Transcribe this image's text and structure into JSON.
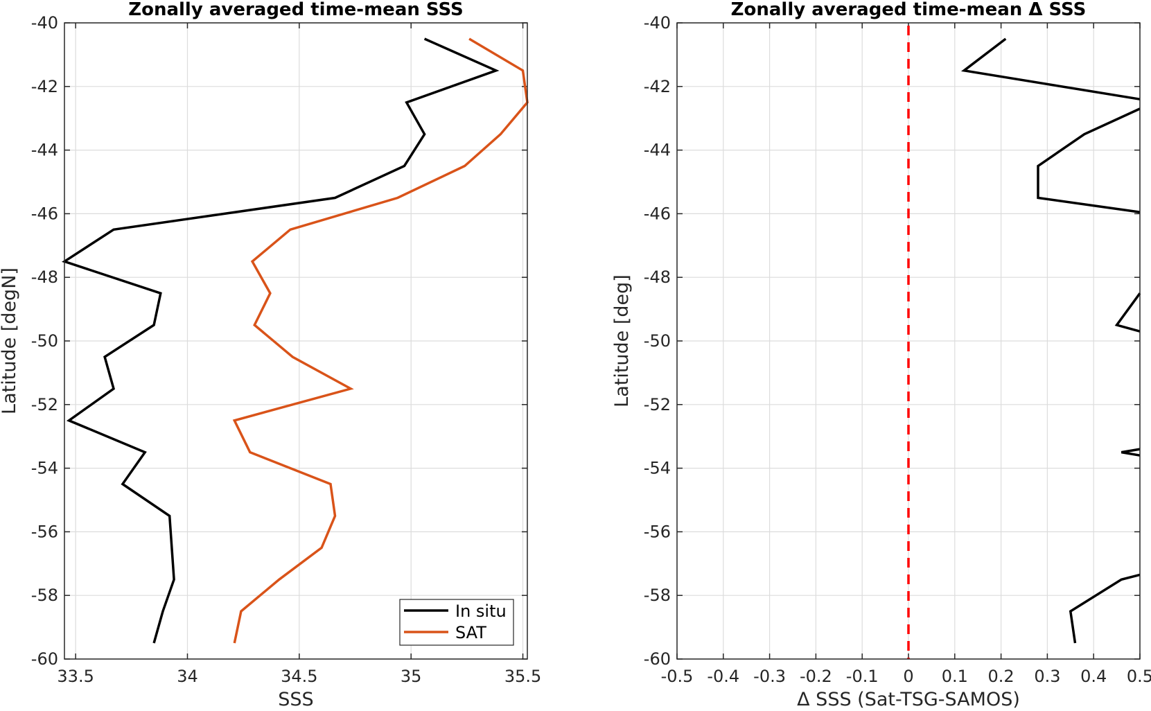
{
  "chart_data": [
    {
      "type": "line",
      "title": "Zonally averaged time-mean SSS",
      "xlabel": "SSS",
      "ylabel": "Latitude [degN]",
      "xlim": [
        33.45,
        35.52
      ],
      "ylim": [
        -60,
        -40
      ],
      "xticks": [
        33.5,
        34,
        34.5,
        35,
        35.5
      ],
      "xtick_labels": [
        "33.5",
        "34",
        "34.5",
        "35",
        "35.5"
      ],
      "yticks": [
        -60,
        -58,
        -56,
        -54,
        -52,
        -50,
        -48,
        -46,
        -44,
        -42,
        -40
      ],
      "ytick_labels": [
        "-60",
        "-58",
        "-56",
        "-54",
        "-52",
        "-50",
        "-48",
        "-46",
        "-44",
        "-42",
        "-40"
      ],
      "grid": true,
      "legend": "bottom-right",
      "series": [
        {
          "name": "In situ",
          "color": "#000000",
          "points": [
            [
              35.06,
              -40.5
            ],
            [
              35.38,
              -41.5
            ],
            [
              34.98,
              -42.5
            ],
            [
              35.06,
              -43.5
            ],
            [
              34.97,
              -44.5
            ],
            [
              34.66,
              -45.5
            ],
            [
              33.67,
              -46.5
            ],
            [
              33.45,
              -47.5
            ],
            [
              33.88,
              -48.5
            ],
            [
              33.85,
              -49.5
            ],
            [
              33.63,
              -50.5
            ],
            [
              33.67,
              -51.5
            ],
            [
              33.47,
              -52.5
            ],
            [
              33.81,
              -53.5
            ],
            [
              33.71,
              -54.5
            ],
            [
              33.92,
              -55.5
            ],
            [
              33.93,
              -56.5
            ],
            [
              33.94,
              -57.5
            ],
            [
              33.89,
              -58.5
            ],
            [
              33.85,
              -59.5
            ]
          ]
        },
        {
          "name": "SAT",
          "color": "#d95319",
          "points": [
            [
              35.26,
              -40.5
            ],
            [
              35.5,
              -41.5
            ],
            [
              35.52,
              -42.5
            ],
            [
              35.4,
              -43.5
            ],
            [
              35.24,
              -44.5
            ],
            [
              34.94,
              -45.5
            ],
            [
              34.46,
              -46.5
            ],
            [
              34.29,
              -47.5
            ],
            [
              34.37,
              -48.5
            ],
            [
              34.3,
              -49.5
            ],
            [
              34.47,
              -50.5
            ],
            [
              34.73,
              -51.5
            ],
            [
              34.21,
              -52.5
            ],
            [
              34.28,
              -53.5
            ],
            [
              34.64,
              -54.5
            ],
            [
              34.66,
              -55.5
            ],
            [
              34.6,
              -56.5
            ],
            [
              34.41,
              -57.5
            ],
            [
              34.24,
              -58.5
            ],
            [
              34.21,
              -59.5
            ]
          ]
        }
      ]
    },
    {
      "type": "line",
      "title": "Zonally averaged time-mean Δ SSS",
      "xlabel": "Δ SSS (Sat-TSG-SAMOS)",
      "ylabel": "Latitude [deg]",
      "xlim": [
        -0.5,
        0.5
      ],
      "ylim": [
        -60,
        -40
      ],
      "xticks": [
        -0.5,
        -0.4,
        -0.3,
        -0.2,
        -0.1,
        0,
        0.1,
        0.2,
        0.3,
        0.4,
        0.5
      ],
      "xtick_labels": [
        "-0.5",
        "-0.4",
        "-0.3",
        "-0.2",
        "-0.1",
        "0",
        "0.1",
        "0.2",
        "0.3",
        "0.4",
        "0.5"
      ],
      "yticks": [
        -60,
        -58,
        -56,
        -54,
        -52,
        -50,
        -48,
        -46,
        -44,
        -42,
        -40
      ],
      "ytick_labels": [
        "-60",
        "-58",
        "-56",
        "-54",
        "-52",
        "-50",
        "-48",
        "-46",
        "-44",
        "-42",
        "-40"
      ],
      "grid": true,
      "reference_line": {
        "x": 0,
        "style": "dashed",
        "color": "#ff0000"
      },
      "series": [
        {
          "color": "#000000",
          "segments": [
            [
              [
                0.21,
                -40.5
              ],
              [
                0.12,
                -41.5
              ],
              [
                0.5,
                -42.4
              ]
            ],
            [
              [
                0.5,
                -42.7
              ],
              [
                0.38,
                -43.5
              ],
              [
                0.28,
                -44.5
              ],
              [
                0.28,
                -45.5
              ],
              [
                0.5,
                -45.95
              ]
            ],
            [
              [
                0.5,
                -48.5
              ],
              [
                0.45,
                -49.5
              ],
              [
                0.5,
                -49.7
              ]
            ],
            [
              [
                0.5,
                -53.4
              ],
              [
                0.46,
                -53.5
              ],
              [
                0.5,
                -53.6
              ]
            ],
            [
              [
                0.5,
                -57.35
              ],
              [
                0.46,
                -57.5
              ],
              [
                0.35,
                -58.5
              ],
              [
                0.36,
                -59.5
              ]
            ]
          ]
        }
      ]
    }
  ]
}
